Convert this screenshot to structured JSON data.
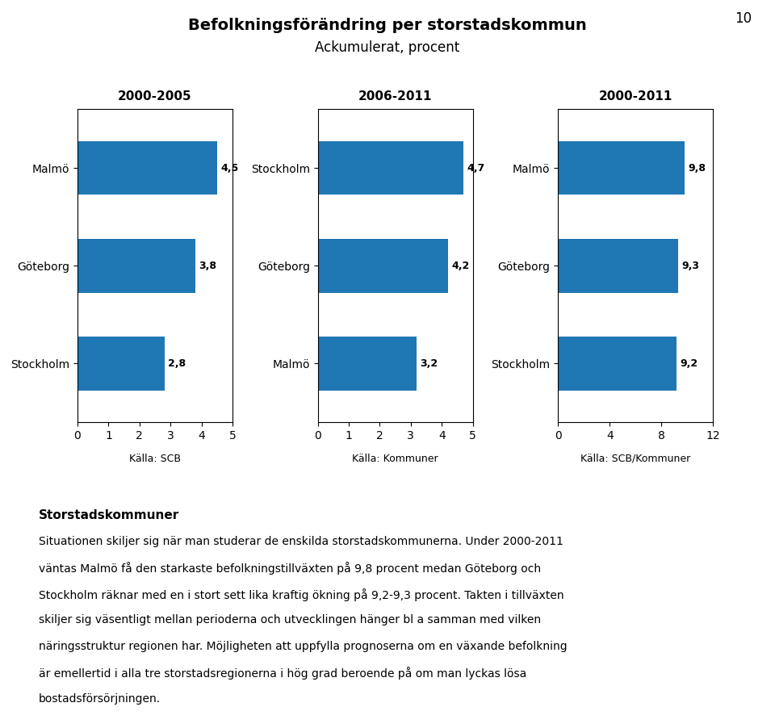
{
  "title": "Befolkningsförändring per storstadskommun",
  "subtitle": "Ackumulerat, procent",
  "annotations": [
    "10",
    "Storstadskommuner",
    "Situationen skiljer sig när man studerar de enskilda storstadskommunerna. Under 2000-2011",
    "väntas Malmö få den starkaste befolkningstillväxten på 9,8 procent medan Göteborg och",
    "Stockholm räknar med en i stort sett lika kraftig ökning på 9,2-9,3 procent. Takten i tillväxten",
    "skiljer sig väsentligt mellan perioderna och utvecklingen hänger bl a samman med vilken",
    "näringsstruktur regionen har. Möjligheten att uppfylla prognoserna om en växande befolkning",
    "är emellertid i alla tre storstadsregionerna i hög grad beroende på om man lyckas lösa",
    "bostadsförsörjningen."
  ],
  "chart_data": [
    {
      "type": "bar",
      "orientation": "horizontal",
      "title": "2000-2005",
      "annotations": [
        "Källa: SCB"
      ],
      "categories": [
        "Malmö",
        "Göteborg",
        "Stockholm"
      ],
      "values": [
        4.5,
        3.8,
        2.8
      ],
      "value_labels": [
        "4,5",
        "3,8",
        "2,8"
      ],
      "data_labels": true,
      "grid": false,
      "xlim": [
        0,
        5
      ],
      "xticks": [
        0,
        1,
        2,
        3,
        4,
        5
      ]
    },
    {
      "type": "bar",
      "orientation": "horizontal",
      "title": "2006-2011",
      "annotations": [
        "Källa: Kommuner"
      ],
      "categories": [
        "Stockholm",
        "Göteborg",
        "Malmö"
      ],
      "values": [
        4.7,
        4.2,
        3.2
      ],
      "value_labels": [
        "4,7",
        "4,2",
        "3,2"
      ],
      "data_labels": true,
      "grid": false,
      "xlim": [
        0,
        5
      ],
      "xticks": [
        0,
        1,
        2,
        3,
        4,
        5
      ]
    },
    {
      "type": "bar",
      "orientation": "horizontal",
      "title": "2000-2011",
      "annotations": [
        "Källa: SCB/Kommuner"
      ],
      "categories": [
        "Malmö",
        "Göteborg",
        "Stockholm"
      ],
      "values": [
        9.8,
        9.3,
        9.2
      ],
      "value_labels": [
        "9,8",
        "9,3",
        "9,2"
      ],
      "data_labels": true,
      "grid": false,
      "xlim": [
        0,
        12
      ],
      "xticks": [
        0,
        4,
        8,
        12
      ]
    }
  ]
}
